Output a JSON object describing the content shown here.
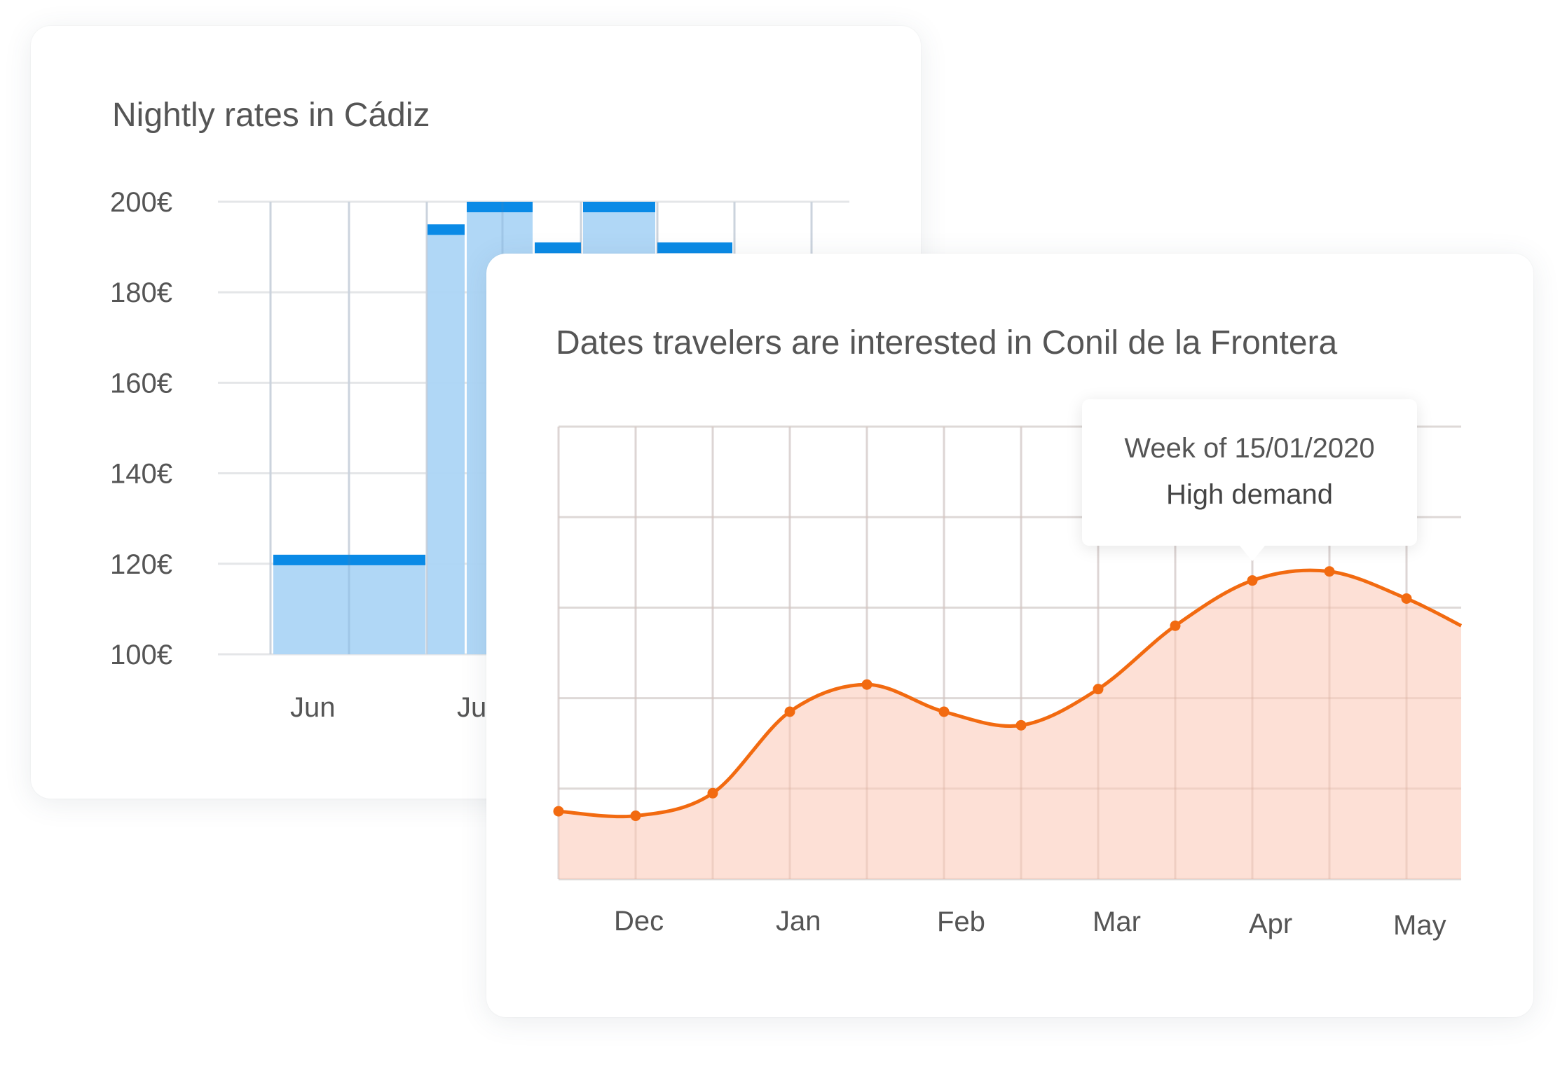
{
  "colors": {
    "bar_fill": "#acd5f5",
    "bar_cap": "#0a8ae6",
    "line": "#f26a10",
    "area": "#fddbcf",
    "grid": "#e4e6e8",
    "text": "#555555"
  },
  "chart_data": [
    {
      "type": "bar",
      "title": "Nightly rates in Cádiz",
      "ylim": [
        100,
        200
      ],
      "y_ticks": [
        "200€",
        "180€",
        "160€",
        "140€",
        "120€",
        "100€"
      ],
      "x_ticks": [
        "Jun",
        "July"
      ],
      "grid": true,
      "bars": [
        {
          "label": "Jun",
          "value": 122
        },
        {
          "label": "July",
          "value": 195
        },
        {
          "label": "July",
          "value": 200
        },
        {
          "label": "July",
          "value": 191
        },
        {
          "label": "July",
          "value": 200
        },
        {
          "label": "July",
          "value": 191
        }
      ]
    },
    {
      "type": "area",
      "title": "Dates travelers are interested in Conil de la Frontera",
      "x_ticks": [
        "Dec",
        "Jan",
        "Feb",
        "Mar",
        "Apr",
        "May"
      ],
      "ylim": [
        0,
        100
      ],
      "grid": true,
      "values": [
        15,
        14,
        19,
        37,
        43,
        37,
        34,
        42,
        56,
        66,
        68,
        62,
        56
      ],
      "tooltip": {
        "line1": "Week of 15/01/2020",
        "line2": "High demand",
        "point_index": 9
      }
    }
  ]
}
